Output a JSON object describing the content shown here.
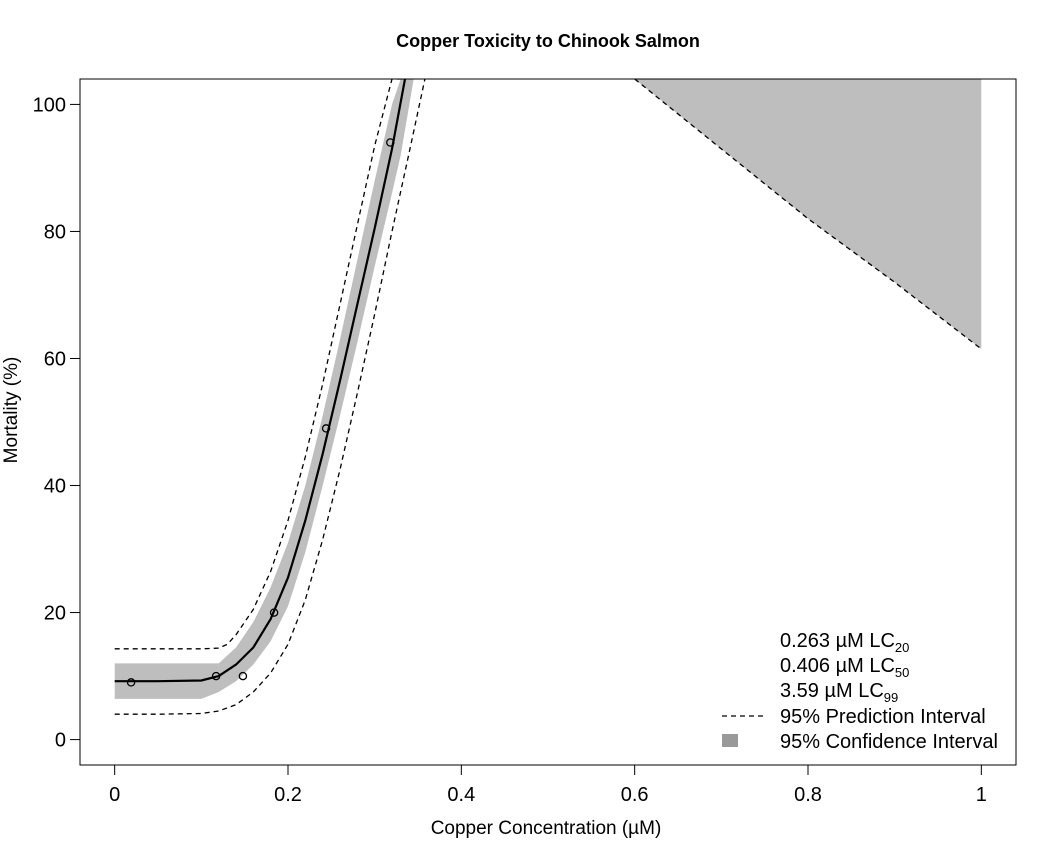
{
  "chart_data": {
    "type": "line",
    "title": "Copper Toxicity to Chinook Salmon",
    "xlabel": "Copper Concentration (µM)",
    "ylabel": "Mortality (%)",
    "xlim": [
      -0.04,
      1.04
    ],
    "ylim": [
      -4,
      104
    ],
    "x_ticks": [
      0,
      0.2,
      0.4,
      0.6,
      0.8,
      1
    ],
    "x_tick_labels": [
      "0",
      "0.2",
      "0.4",
      "0.6",
      "0.8",
      "1"
    ],
    "y_ticks": [
      0,
      20,
      40,
      60,
      80,
      100
    ],
    "y_tick_labels": [
      "0",
      "20",
      "40",
      "60",
      "80",
      "100"
    ],
    "grid": false,
    "legend_position": "bottom-right",
    "colors": {
      "fit": "#000000",
      "confidence_band": "#bebebe",
      "prediction_interval": "#000000",
      "legend_swatch": "#999999"
    },
    "points": {
      "x": [
        0.019,
        0.117,
        0.148,
        0.184,
        0.244,
        0.318
      ],
      "y": [
        9,
        10,
        10,
        20,
        49,
        94
      ]
    },
    "fit": {
      "x": [
        0,
        0.05,
        0.1,
        0.12,
        0.14,
        0.16,
        0.18,
        0.2,
        0.22,
        0.24,
        0.26,
        0.28,
        0.3,
        0.32,
        0.335
      ],
      "y": [
        9.2,
        9.2,
        9.3,
        10.0,
        11.8,
        14.5,
        19.0,
        25.5,
        34.5,
        45.0,
        56.5,
        68.5,
        80.5,
        93.0,
        104
      ]
    },
    "confidence_band_main": {
      "x": [
        0,
        0.05,
        0.1,
        0.12,
        0.14,
        0.16,
        0.18,
        0.2,
        0.22,
        0.24,
        0.26,
        0.28,
        0.3,
        0.32,
        0.33,
        0.345
      ],
      "upper": [
        12.0,
        12.0,
        12.0,
        12.0,
        14.5,
        18.5,
        24.0,
        31.0,
        40.0,
        51.0,
        63.0,
        75.5,
        88.0,
        100.0,
        104,
        104
      ],
      "lower": [
        6.4,
        6.4,
        6.4,
        7.5,
        9.2,
        11.8,
        15.5,
        21.0,
        29.5,
        40.0,
        51.0,
        62.5,
        74.5,
        86.0,
        92.0,
        104
      ]
    },
    "confidence_band_upper_region": {
      "x": [
        0.6,
        0.7,
        0.8,
        0.9,
        1.0
      ],
      "lower": [
        104,
        93,
        82,
        72,
        61.5
      ],
      "upper": [
        104,
        104,
        104,
        104,
        104
      ]
    },
    "prediction_upper": {
      "x": [
        0,
        0.05,
        0.1,
        0.12,
        0.13,
        0.14,
        0.16,
        0.18,
        0.2,
        0.22,
        0.24,
        0.26,
        0.28,
        0.3,
        0.32,
        0.333
      ],
      "y": [
        14.3,
        14.3,
        14.3,
        14.4,
        15.0,
        16.5,
        20.5,
        26.5,
        34.5,
        44.5,
        56.0,
        68.5,
        81.0,
        93.5,
        104,
        104
      ]
    },
    "prediction_lower": {
      "x": [
        0,
        0.05,
        0.1,
        0.12,
        0.14,
        0.16,
        0.18,
        0.2,
        0.22,
        0.24,
        0.26,
        0.28,
        0.3,
        0.32,
        0.34,
        0.358
      ],
      "y": [
        4.0,
        4.0,
        4.1,
        4.5,
        5.5,
        7.5,
        10.5,
        15.0,
        22.0,
        31.5,
        42.5,
        54.5,
        67.0,
        80.0,
        92.5,
        104
      ]
    },
    "prediction_upper_region": {
      "x": [
        0.6,
        0.7,
        0.8,
        0.9,
        1.0
      ],
      "y": [
        104,
        93,
        82,
        72,
        61.5
      ]
    },
    "legend": {
      "lc_lines": [
        {
          "value": "0.263 µM LC",
          "sub": "20"
        },
        {
          "value": "0.406 µM LC",
          "sub": "50"
        },
        {
          "value": "3.59 µM LC",
          "sub": "99"
        }
      ],
      "prediction_label": "95% Prediction Interval",
      "confidence_label": "95% Confidence Interval"
    }
  }
}
